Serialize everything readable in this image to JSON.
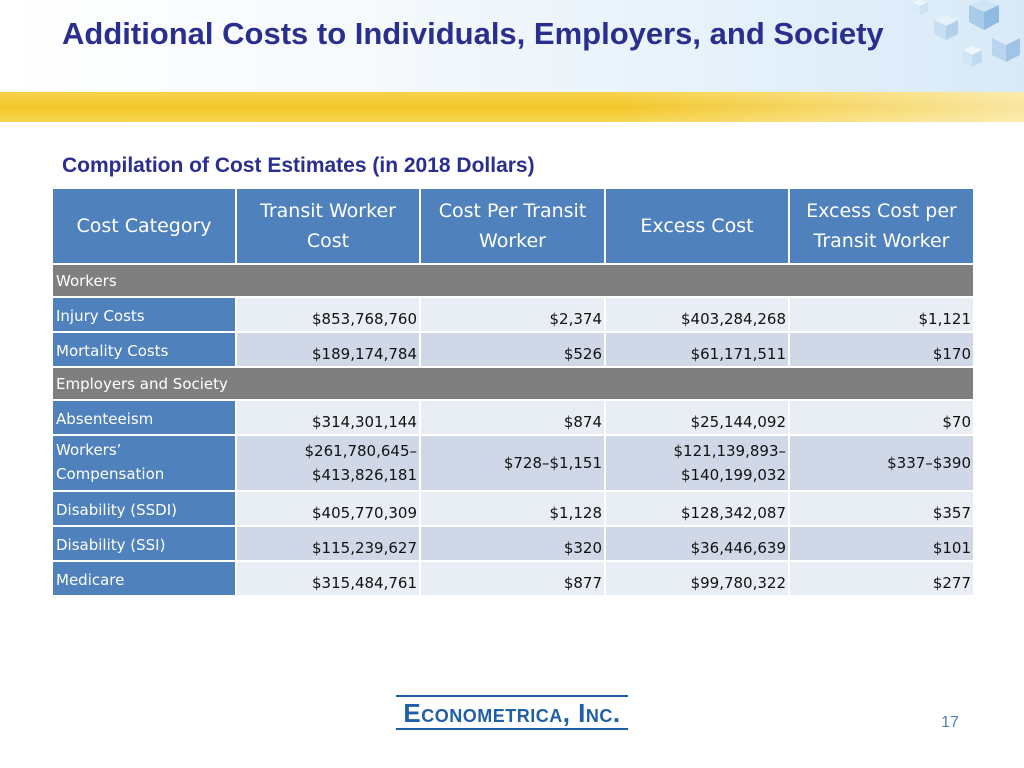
{
  "slide": {
    "title": "Additional Costs to Individuals, Employers, and Society",
    "subtitle": "Compilation of Cost Estimates (in 2018 Dollars)",
    "page_number": "17",
    "logo_text": "Econometrica, Inc."
  },
  "table": {
    "headers": [
      "Cost Category",
      "Transit Worker Cost",
      "Cost Per Transit Worker",
      "Excess Cost",
      "Excess Cost per Transit Worker"
    ],
    "sections": [
      {
        "label": "Workers",
        "rows": [
          {
            "category": "Injury Costs",
            "values": [
              "$853,768,760",
              "$2,374",
              "$403,284,268",
              "$1,121"
            ]
          },
          {
            "category": "Mortality Costs",
            "values": [
              "$189,174,784",
              "$526",
              "$61,171,511",
              "$170"
            ]
          }
        ]
      },
      {
        "label": "Employers and Society",
        "rows": [
          {
            "category": "Absenteeism",
            "values": [
              "$314,301,144",
              "$874",
              "$25,144,092",
              "$70"
            ]
          },
          {
            "category": "Workers’ Compensation",
            "values": [
              "$261,780,645–$413,826,181",
              "$728–$1,151",
              "$121,139,893–$140,199,032",
              "$337–$390"
            ]
          },
          {
            "category": "Disability (SSDI)",
            "values": [
              "$405,770,309",
              "$1,128",
              "$128,342,087",
              "$357"
            ]
          },
          {
            "category": "Disability (SSI)",
            "values": [
              "$115,239,627",
              "$320",
              "$36,446,639",
              "$101"
            ]
          },
          {
            "category": "Medicare",
            "values": [
              "$315,484,761",
              "$877",
              "$99,780,322",
              "$277"
            ]
          }
        ]
      }
    ]
  }
}
